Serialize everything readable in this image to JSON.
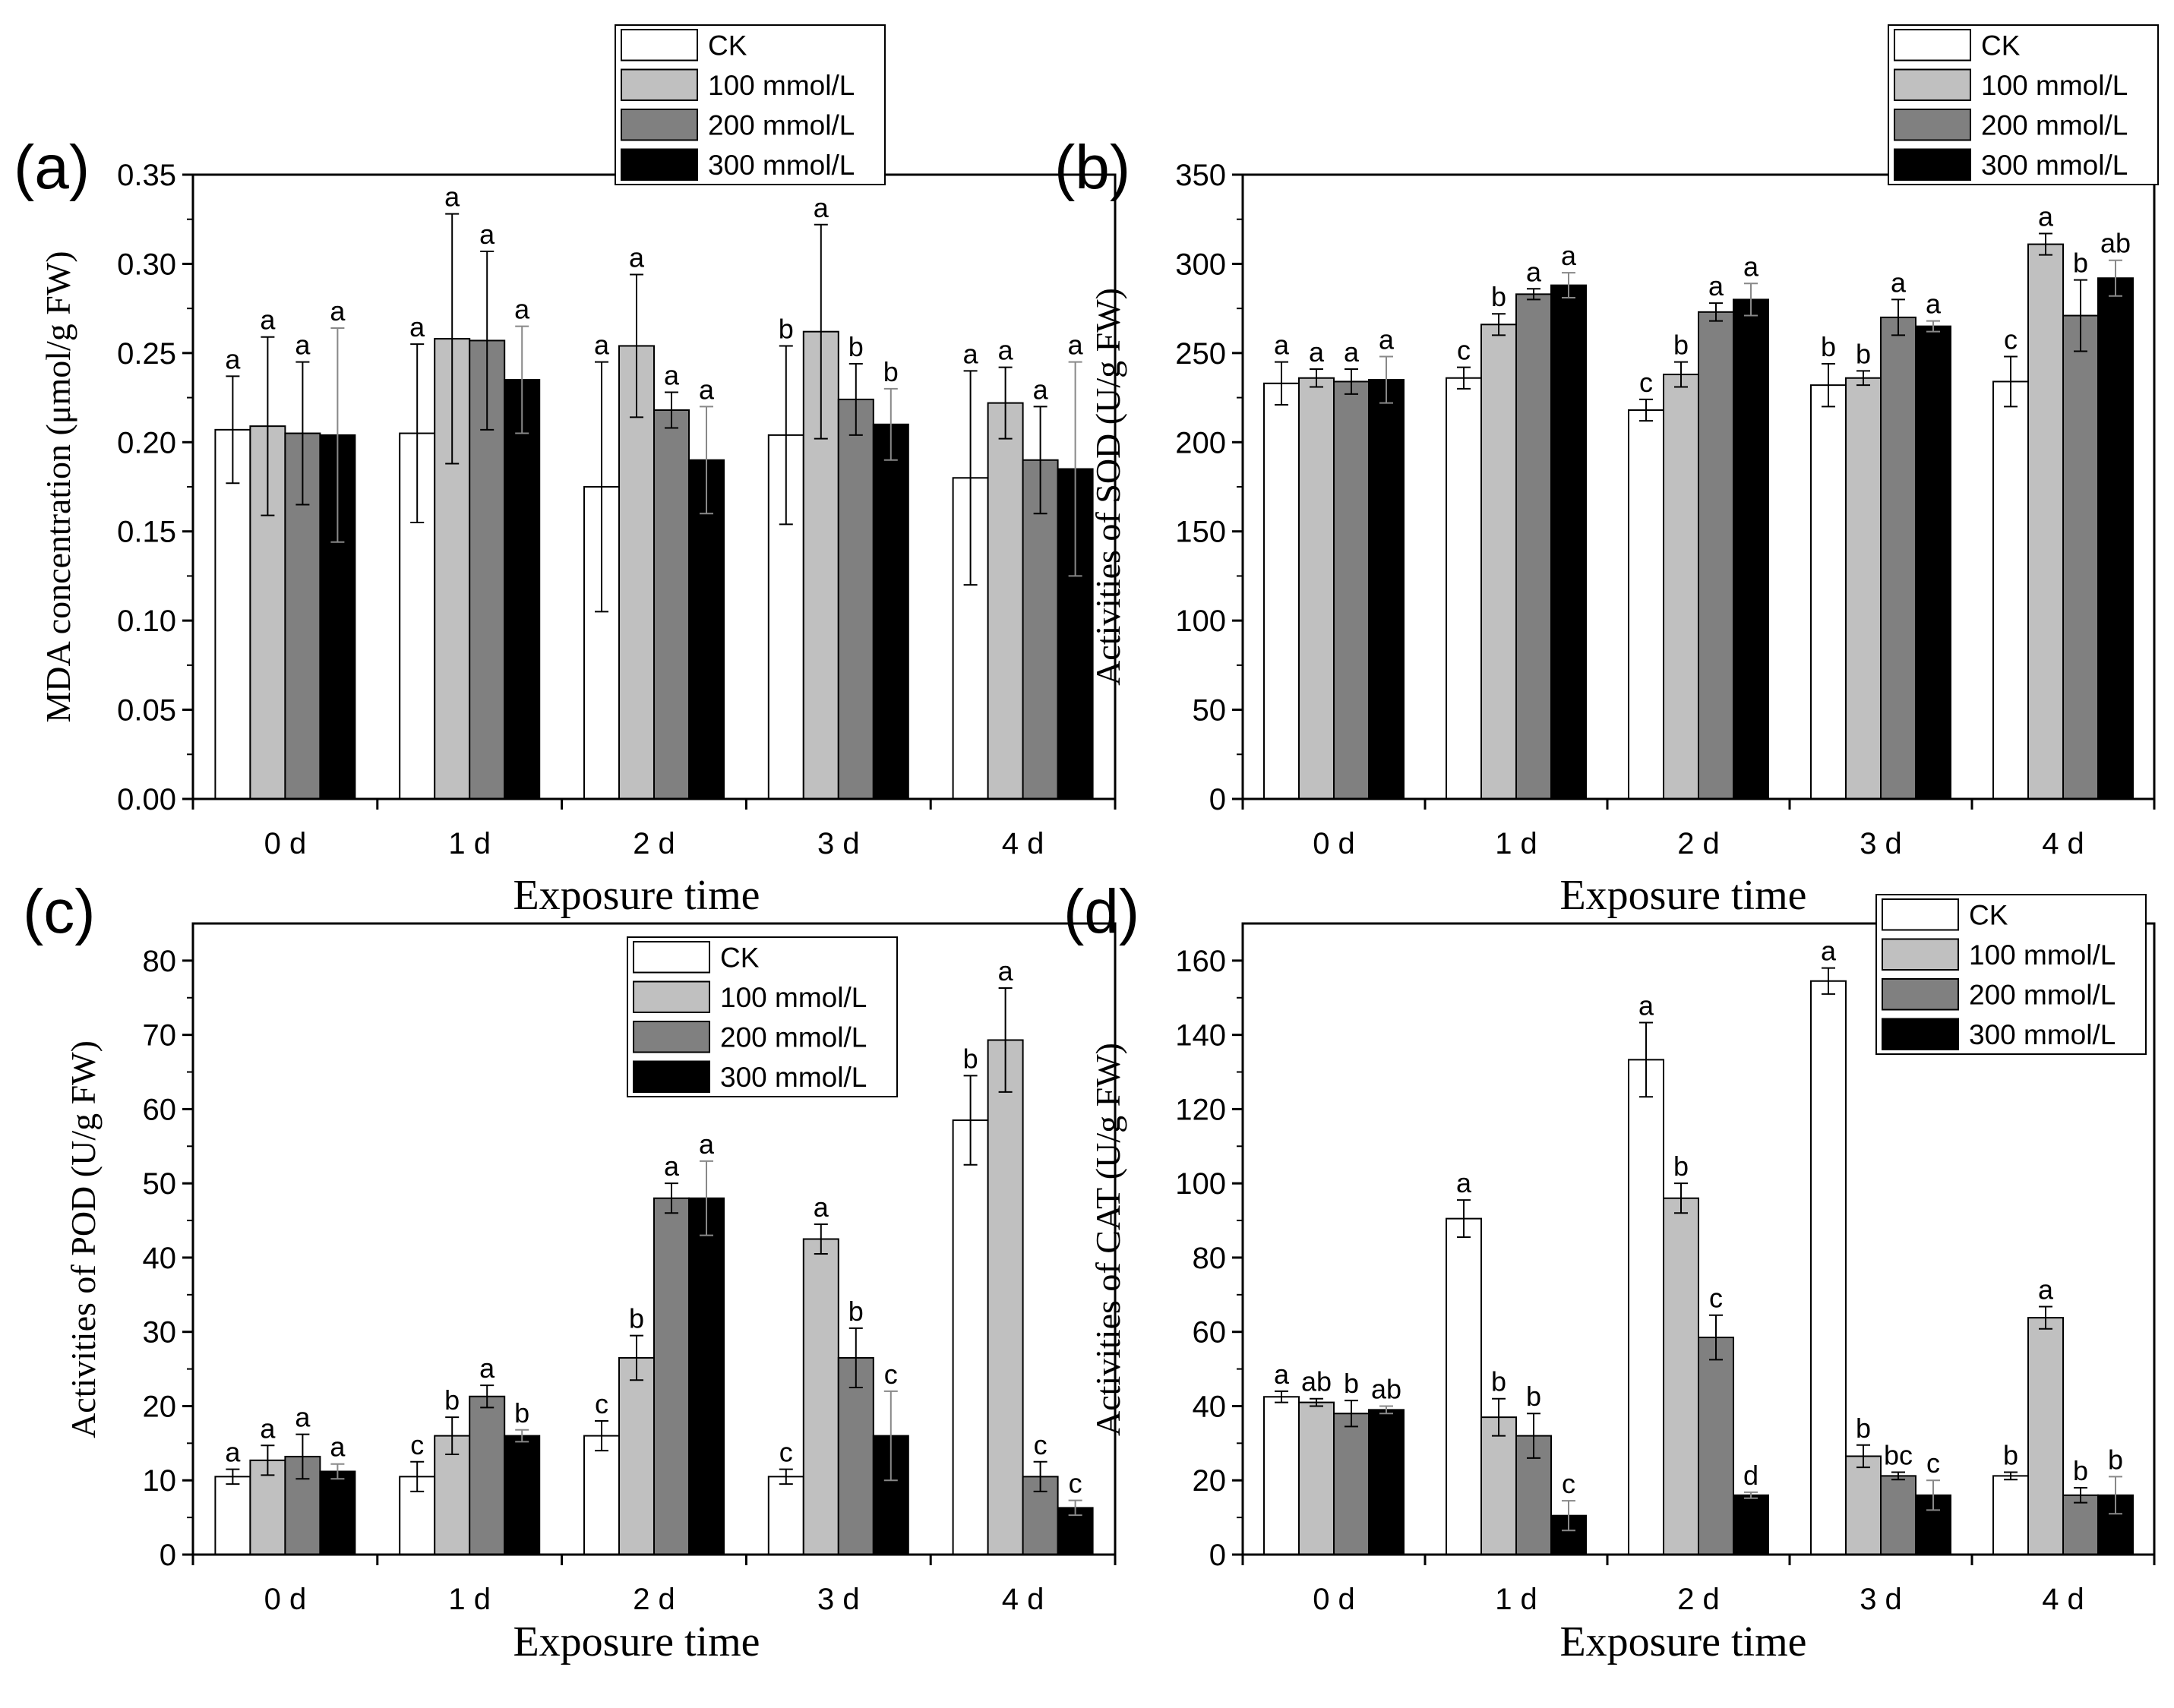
{
  "colors": {
    "CK": "#ffffff",
    "100 mmol/L": "#c0c0c0",
    "200 mmol/L": "#808080",
    "300 mmol/L": "#000000"
  },
  "chart_data": [
    {
      "type": "bar",
      "panel_label": "(a)",
      "title": "",
      "xlabel": "Exposure time",
      "ylabel": "MDA concentration (μmol/g FW)",
      "categories": [
        "0 d",
        "1 d",
        "2 d",
        "3 d",
        "4 d"
      ],
      "ylim": [
        0,
        0.35
      ],
      "yticks": [
        "0.00",
        "0.05",
        "0.10",
        "0.15",
        "0.20",
        "0.25",
        "0.30",
        "0.35"
      ],
      "legend_position": "top",
      "series": [
        {
          "name": "CK",
          "values": [
            0.207,
            0.205,
            0.175,
            0.204,
            0.18
          ],
          "errors": [
            0.03,
            0.05,
            0.07,
            0.05,
            0.06
          ],
          "letters": [
            "a",
            "a",
            "a",
            "b",
            "a"
          ]
        },
        {
          "name": "100 mmol/L",
          "values": [
            0.209,
            0.258,
            0.254,
            0.262,
            0.222
          ],
          "errors": [
            0.05,
            0.07,
            0.04,
            0.06,
            0.02
          ],
          "letters": [
            "a",
            "a",
            "a",
            "a",
            "a"
          ]
        },
        {
          "name": "200 mmol/L",
          "values": [
            0.205,
            0.257,
            0.218,
            0.224,
            0.19
          ],
          "errors": [
            0.04,
            0.05,
            0.01,
            0.02,
            0.03
          ],
          "letters": [
            "a",
            "a",
            "a",
            "b",
            "a"
          ]
        },
        {
          "name": "300 mmol/L",
          "values": [
            0.204,
            0.235,
            0.19,
            0.21,
            0.185
          ],
          "errors": [
            0.06,
            0.03,
            0.03,
            0.02,
            0.06
          ],
          "letters": [
            "a",
            "a",
            "a",
            "b",
            "a"
          ]
        }
      ]
    },
    {
      "type": "bar",
      "panel_label": "(b)",
      "title": "",
      "xlabel": "Exposure time",
      "ylabel": "Activities of SOD (U/g FW)",
      "categories": [
        "0 d",
        "1 d",
        "2 d",
        "3 d",
        "4 d"
      ],
      "ylim": [
        0,
        350
      ],
      "yticks": [
        "0",
        "50",
        "100",
        "150",
        "200",
        "250",
        "300",
        "350"
      ],
      "legend_position": "top-right",
      "series": [
        {
          "name": "CK",
          "values": [
            233,
            236,
            218,
            232,
            234
          ],
          "errors": [
            12,
            6,
            6,
            12,
            14
          ],
          "letters": [
            "a",
            "c",
            "c",
            "b",
            "c"
          ]
        },
        {
          "name": "100 mmol/L",
          "values": [
            236,
            266,
            238,
            236,
            311
          ],
          "errors": [
            5,
            6,
            7,
            4,
            6
          ],
          "letters": [
            "a",
            "b",
            "b",
            "b",
            "a"
          ]
        },
        {
          "name": "200 mmol/L",
          "values": [
            234,
            283,
            273,
            270,
            271
          ],
          "errors": [
            7,
            3,
            5,
            10,
            20
          ],
          "letters": [
            "a",
            "a",
            "a",
            "a",
            "b"
          ]
        },
        {
          "name": "300 mmol/L",
          "values": [
            235,
            288,
            280,
            265,
            292
          ],
          "errors": [
            13,
            7,
            9,
            3,
            10
          ],
          "letters": [
            "a",
            "a",
            "a",
            "a",
            "ab"
          ]
        }
      ]
    },
    {
      "type": "bar",
      "panel_label": "(c)",
      "title": "",
      "xlabel": "Exposure time",
      "ylabel": "Activities of POD (U/g FW)",
      "categories": [
        "0 d",
        "1 d",
        "2 d",
        "3 d",
        "4 d"
      ],
      "ylim": [
        0,
        85
      ],
      "yticks": [
        "0",
        "10",
        "20",
        "30",
        "40",
        "50",
        "60",
        "70",
        "80"
      ],
      "legend_position": "top-right",
      "series": [
        {
          "name": "CK",
          "values": [
            10.5,
            10.5,
            16.0,
            10.5,
            58.5
          ],
          "errors": [
            1.0,
            2.0,
            2.0,
            1.0,
            6.0
          ],
          "letters": [
            "a",
            "c",
            "c",
            "c",
            "b"
          ]
        },
        {
          "name": "100 mmol/L",
          "values": [
            12.7,
            16.0,
            26.5,
            42.5,
            69.3
          ],
          "errors": [
            2.0,
            2.5,
            3.0,
            2.0,
            7.0
          ],
          "letters": [
            "a",
            "b",
            "b",
            "a",
            "a"
          ]
        },
        {
          "name": "200 mmol/L",
          "values": [
            13.2,
            21.3,
            48.0,
            26.5,
            10.5
          ],
          "errors": [
            3.0,
            1.5,
            2.0,
            4.0,
            2.0
          ],
          "letters": [
            "a",
            "a",
            "a",
            "b",
            "c"
          ]
        },
        {
          "name": "300 mmol/L",
          "values": [
            11.2,
            16.0,
            48.0,
            16.0,
            6.3
          ],
          "errors": [
            1.0,
            0.8,
            5.0,
            6.0,
            1.0
          ],
          "letters": [
            "a",
            "b",
            "a",
            "c",
            "c"
          ]
        }
      ]
    },
    {
      "type": "bar",
      "panel_label": "(d)",
      "title": "",
      "xlabel": "Exposure time",
      "ylabel": "Activities of CAT (U/g FW)",
      "categories": [
        "0 d",
        "1 d",
        "2 d",
        "3 d",
        "4 d"
      ],
      "ylim": [
        0,
        170
      ],
      "yticks": [
        "0",
        "20",
        "40",
        "60",
        "80",
        "100",
        "120",
        "140",
        "160"
      ],
      "legend_position": "top-right",
      "series": [
        {
          "name": "CK",
          "values": [
            42.5,
            90.5,
            133.3,
            154.5,
            21.2
          ],
          "errors": [
            1.5,
            5.0,
            10.0,
            3.5,
            1.0
          ],
          "letters": [
            "a",
            "a",
            "a",
            "a",
            "b"
          ]
        },
        {
          "name": "100 mmol/L",
          "values": [
            41.0,
            37.0,
            96.0,
            26.5,
            63.8
          ],
          "errors": [
            1.0,
            5.0,
            4.0,
            3.0,
            3.0
          ],
          "letters": [
            "ab",
            "b",
            "b",
            "b",
            "a"
          ]
        },
        {
          "name": "200 mmol/L",
          "values": [
            38.0,
            32.0,
            58.5,
            21.2,
            16.0
          ],
          "errors": [
            3.5,
            6.0,
            6.0,
            1.0,
            2.0
          ],
          "letters": [
            "b",
            "b",
            "c",
            "bc",
            "b"
          ]
        },
        {
          "name": "300 mmol/L",
          "values": [
            39.0,
            10.5,
            16.0,
            16.0,
            16.0
          ],
          "errors": [
            1.0,
            4.0,
            0.8,
            4.0,
            5.0
          ],
          "letters": [
            "ab",
            "c",
            "d",
            "c",
            "b"
          ]
        }
      ]
    }
  ]
}
